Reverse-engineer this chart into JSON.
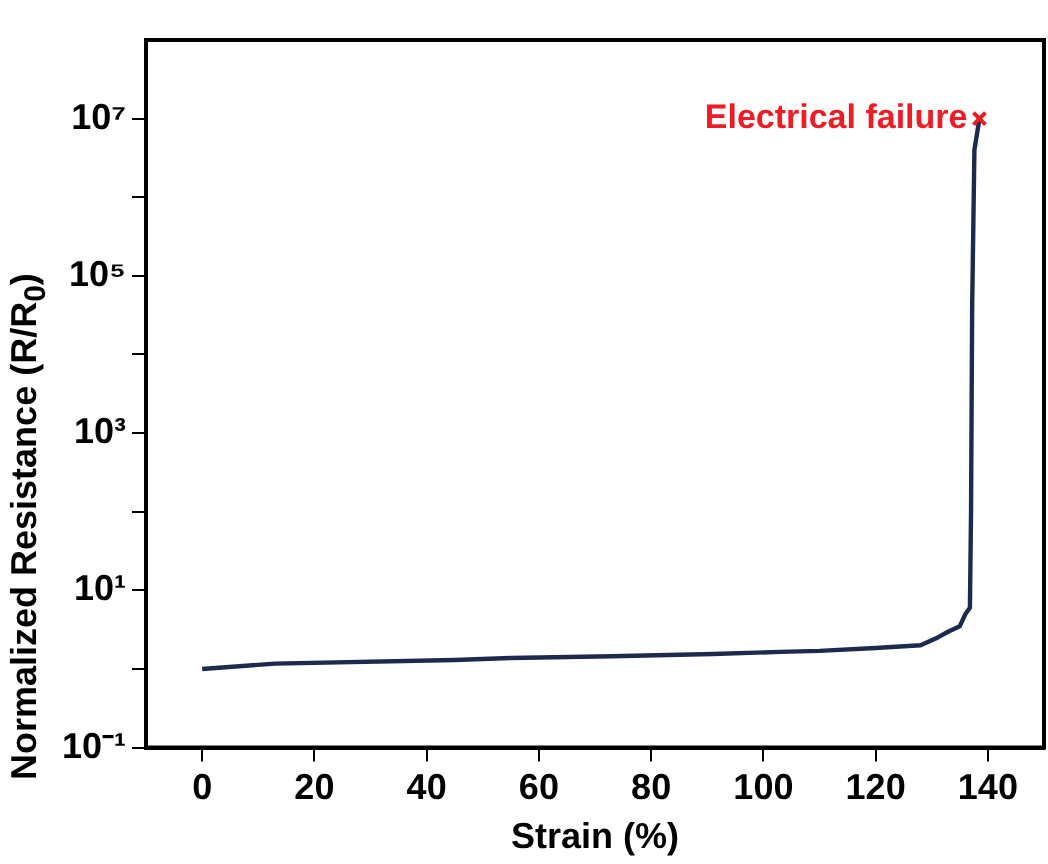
{
  "chart_data": {
    "type": "line",
    "xlabel": "Strain (%)",
    "ylabel": "Normalized Resistance (R/R$_{0}$)",
    "x": [
      0,
      13,
      45,
      55,
      73,
      91,
      103,
      110,
      120,
      128,
      131,
      133,
      135,
      136,
      136.8,
      137,
      137.2,
      137.6,
      138.5
    ],
    "series": [
      {
        "color": "#1c2a4e",
        "values": [
          1,
          1.17,
          1.3,
          1.38,
          1.45,
          1.55,
          1.65,
          1.7,
          1.85,
          2,
          2.5,
          3,
          3.5,
          5,
          6,
          100,
          40000,
          4000000,
          10000000
        ]
      }
    ],
    "xlim": [
      -10,
      150
    ],
    "xticks": [
      0,
      20,
      40,
      60,
      80,
      100,
      120,
      140
    ],
    "ylim": [
      0.1,
      100000000
    ],
    "yticks": [
      {
        "value": 0.1,
        "label": "10⁻¹"
      },
      {
        "value": 1,
        "label": null
      },
      {
        "value": 10,
        "label": "10¹"
      },
      {
        "value": 100,
        "label": null
      },
      {
        "value": 1000,
        "label": "10³"
      },
      {
        "value": 10000,
        "label": null
      },
      {
        "value": 100000,
        "label": "10⁵"
      },
      {
        "value": 1000000,
        "label": null
      },
      {
        "value": 10000000,
        "label": "10⁷"
      }
    ],
    "log": "y",
    "grid": false,
    "legend": false,
    "marker": "none",
    "line_style": "solid",
    "annotations": [
      {
        "text": "Electrical failure",
        "x": 138.5,
        "y": 10000000
      }
    ]
  }
}
